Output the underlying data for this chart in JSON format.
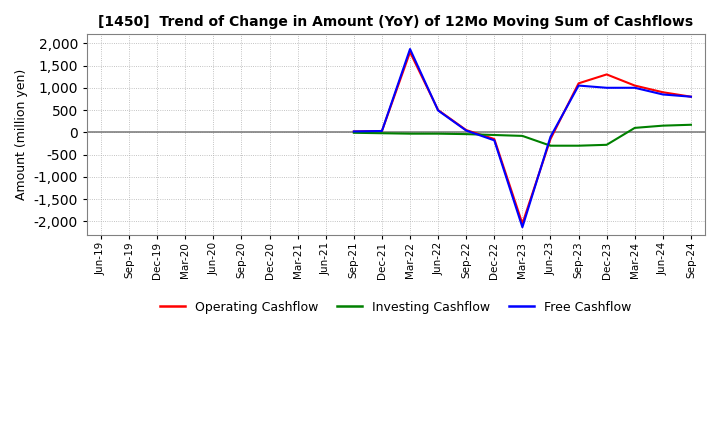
{
  "title": "[1450]  Trend of Change in Amount (YoY) of 12Mo Moving Sum of Cashflows",
  "ylabel": "Amount (million yen)",
  "ylim": [
    -2300,
    2200
  ],
  "yticks": [
    -2000,
    -1500,
    -1000,
    -500,
    0,
    500,
    1000,
    1500,
    2000
  ],
  "background_color": "#ffffff",
  "grid_color": "#b0b0b0",
  "x_labels": [
    "Jun-19",
    "Sep-19",
    "Dec-19",
    "Mar-20",
    "Jun-20",
    "Sep-20",
    "Dec-20",
    "Mar-21",
    "Jun-21",
    "Sep-21",
    "Dec-21",
    "Mar-22",
    "Jun-22",
    "Sep-22",
    "Dec-22",
    "Mar-23",
    "Jun-23",
    "Sep-23",
    "Dec-23",
    "Mar-24",
    "Jun-24",
    "Sep-24"
  ],
  "operating_cashflow": [
    null,
    null,
    null,
    null,
    null,
    null,
    null,
    null,
    null,
    20,
    30,
    1800,
    500,
    50,
    -150,
    -2050,
    -150,
    1100,
    1300,
    1050,
    900,
    800
  ],
  "investing_cashflow": [
    null,
    null,
    null,
    null,
    null,
    null,
    null,
    null,
    null,
    -10,
    -20,
    -30,
    -30,
    -40,
    -60,
    -80,
    -300,
    -300,
    -280,
    100,
    150,
    170
  ],
  "free_cashflow": [
    null,
    null,
    null,
    null,
    null,
    null,
    null,
    null,
    null,
    20,
    30,
    1870,
    490,
    40,
    -180,
    -2130,
    -100,
    1050,
    1000,
    1000,
    850,
    800
  ],
  "legend": [
    {
      "label": "Operating Cashflow",
      "color": "#ff0000"
    },
    {
      "label": "Investing Cashflow",
      "color": "#008000"
    },
    {
      "label": "Free Cashflow",
      "color": "#0000ff"
    }
  ]
}
